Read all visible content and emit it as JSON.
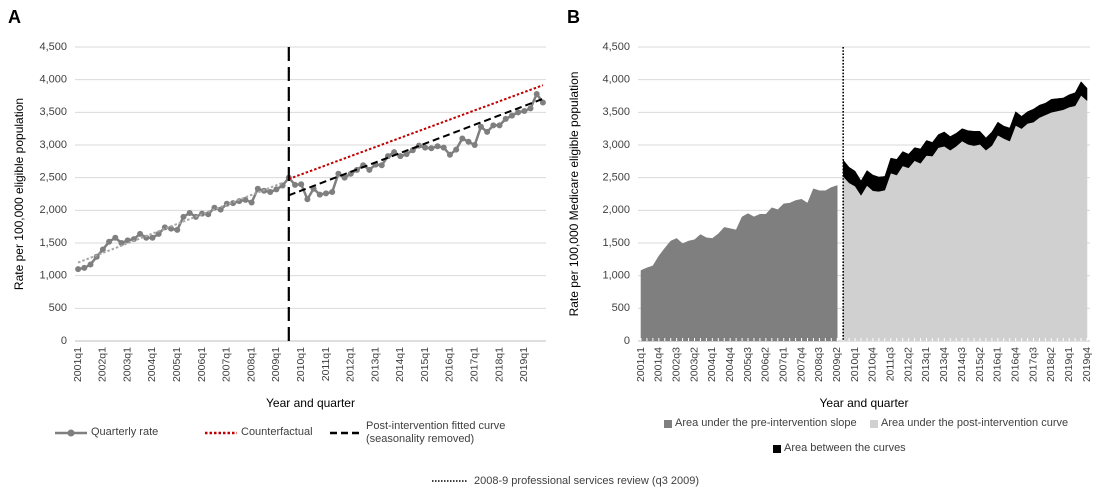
{
  "chart_data": [
    {
      "type": "line",
      "panel_label": "A",
      "x_label": "Year and quarter",
      "y_label": "Rate per 100,000 eligible population",
      "categories": [
        "2001q1",
        null,
        null,
        null,
        "2002q1",
        null,
        null,
        null,
        "2003q1",
        null,
        null,
        null,
        "2004q1",
        null,
        null,
        null,
        "2005q1",
        null,
        null,
        null,
        "2006q1",
        null,
        null,
        null,
        "2007q1",
        null,
        null,
        null,
        "2008q1",
        null,
        null,
        null,
        "2009q1",
        null,
        null,
        null,
        "2010q1",
        null,
        null,
        null,
        "2011q1",
        null,
        null,
        null,
        "2012q1",
        null,
        null,
        null,
        "2013q1",
        null,
        null,
        null,
        "2014q1",
        null,
        null,
        null,
        "2015q1",
        null,
        null,
        null,
        "2016q1",
        null,
        null,
        null,
        "2017q1",
        null,
        null,
        null,
        "2018q1",
        null,
        null,
        null,
        "2019q1",
        null,
        null,
        null
      ],
      "ylim": [
        0,
        4500
      ],
      "yticks": [
        0,
        500,
        {
          "value": 1000,
          "label": "1,000"
        },
        {
          "value": 1500,
          "label": "1,500"
        },
        {
          "value": 2000,
          "label": "2,000"
        },
        {
          "value": 2500,
          "label": "2,500"
        },
        {
          "value": 3000,
          "label": "3,000"
        },
        {
          "value": 3500,
          "label": "3,500"
        },
        {
          "value": 4000,
          "label": "4,000"
        },
        {
          "value": 4500,
          "label": "4,500"
        }
      ],
      "grid": true,
      "intervention_line": "dashed",
      "series": [
        {
          "name": "Quarterly rate",
          "color": "#7f7f7f",
          "style": "solid",
          "markers": true,
          "values": [
            1100,
            1120,
            1170,
            1290,
            1400,
            1520,
            1580,
            1500,
            1540,
            1560,
            1640,
            1580,
            1580,
            1640,
            1740,
            1720,
            1700,
            1900,
            1960,
            1900,
            1950,
            1940,
            2040,
            2010,
            2100,
            2110,
            2140,
            2160,
            2120,
            2330,
            2300,
            2280,
            2320,
            2380,
            2500,
            2390,
            2400,
            2170,
            2330,
            2240,
            2260,
            2280,
            2560,
            2500,
            2560,
            2620,
            2690,
            2620,
            2700,
            2690,
            2830,
            2890,
            2830,
            2860,
            2920,
            2990,
            2960,
            2950,
            2980,
            2960,
            2850,
            2930,
            3100,
            3050,
            3000,
            3280,
            3200,
            3300,
            3300,
            3400,
            3450,
            3500,
            3520,
            3560,
            3780,
            3650
          ]
        },
        {
          "color": "#a6a6a6",
          "style": "dotted",
          "values": [
            1200,
            1237,
            1274,
            1311,
            1348,
            1385,
            1422,
            1459,
            1496,
            1533,
            1570,
            1607,
            1644,
            1681,
            1718,
            1755,
            1792,
            1829,
            1866,
            1903,
            1940,
            1977,
            2014,
            2051,
            2088,
            2125,
            2162,
            2199,
            2236,
            2273,
            2310,
            2347,
            2384,
            2421,
            null,
            null,
            null,
            null,
            null,
            null,
            null,
            null,
            null,
            null,
            null,
            null,
            null,
            null,
            null,
            null,
            null,
            null,
            null,
            null,
            null,
            null,
            null,
            null,
            null,
            null,
            null,
            null,
            null,
            null,
            null,
            null,
            null,
            null,
            null,
            null,
            null,
            null,
            null,
            null,
            null,
            null
          ]
        },
        {
          "name": "Counterfactual",
          "color": "#c00000",
          "style": "dotted",
          "values": [
            null,
            null,
            null,
            null,
            null,
            null,
            null,
            null,
            null,
            null,
            null,
            null,
            null,
            null,
            null,
            null,
            null,
            null,
            null,
            null,
            null,
            null,
            null,
            null,
            null,
            null,
            null,
            null,
            null,
            null,
            null,
            null,
            null,
            null,
            2480,
            2515,
            2550,
            2585,
            2620,
            2655,
            2690,
            2725,
            2760,
            2795,
            2830,
            2865,
            2900,
            2935,
            2970,
            3005,
            3040,
            3075,
            3110,
            3145,
            3180,
            3215,
            3250,
            3285,
            3320,
            3355,
            3390,
            3425,
            3460,
            3495,
            3530,
            3565,
            3600,
            3635,
            3670,
            3705,
            3740,
            3775,
            3810,
            3845,
            3880,
            3915
          ]
        },
        {
          "name": "Post-intervention fitted curve (seasonality removed)",
          "color": "#000000",
          "style": "dashed",
          "values": [
            null,
            null,
            null,
            null,
            null,
            null,
            null,
            null,
            null,
            null,
            null,
            null,
            null,
            null,
            null,
            null,
            null,
            null,
            null,
            null,
            null,
            null,
            null,
            null,
            null,
            null,
            null,
            null,
            null,
            null,
            null,
            null,
            null,
            null,
            2230,
            2266,
            2302,
            2338,
            2374,
            2410,
            2446,
            2482,
            2518,
            2554,
            2590,
            2626,
            2662,
            2698,
            2734,
            2770,
            2806,
            2842,
            2878,
            2914,
            2950,
            2986,
            3022,
            3058,
            3094,
            3130,
            3166,
            3202,
            3238,
            3274,
            3310,
            3346,
            3382,
            3418,
            3454,
            3490,
            3526,
            3562,
            3598,
            3634,
            3670,
            3706
          ]
        }
      ]
    },
    {
      "type": "area",
      "panel_label": "B",
      "x_label": "Year and quarter",
      "y_label": "Rate per 100,000 Medicare eligible population",
      "categories": [
        "2001q1",
        null,
        null,
        "2001q4",
        null,
        null,
        "2002q3",
        null,
        null,
        "2003q2",
        null,
        null,
        "2004q1",
        null,
        null,
        "2004q4",
        null,
        null,
        "2005q3",
        null,
        null,
        "2006q2",
        null,
        null,
        "2007q1",
        null,
        null,
        "2007q4",
        null,
        null,
        "2008q3",
        null,
        null,
        "2009q2",
        null,
        null,
        "2010q1",
        null,
        null,
        "2010q4",
        null,
        null,
        "2011q3",
        null,
        null,
        "2012q2",
        null,
        null,
        "2013q1",
        null,
        null,
        "2013q4",
        null,
        null,
        "2014q3",
        null,
        null,
        "2015q2",
        null,
        null,
        "2016q1",
        null,
        null,
        "2016q4",
        null,
        null,
        "2017q3",
        null,
        null,
        "2018q2",
        null,
        null,
        "2019q1",
        null,
        null,
        "2019q4"
      ],
      "ylim": [
        0,
        4500
      ],
      "yticks": [
        0,
        500,
        {
          "value": 1000,
          "label": "1,000"
        },
        {
          "value": 1500,
          "label": "1,500"
        },
        {
          "value": 2000,
          "label": "2,000"
        },
        {
          "value": 2500,
          "label": "2,500"
        },
        {
          "value": 3000,
          "label": "3,000"
        },
        {
          "value": 3500,
          "label": "3,500"
        },
        {
          "value": 4000,
          "label": "4,000"
        },
        {
          "value": 4500,
          "label": "4,500"
        }
      ],
      "grid": true,
      "stacked": true,
      "intervention_line": "dotted",
      "series": [
        {
          "name": "Area under the pre-intervention slope",
          "color": "#7f7f7f",
          "values": [
            1080,
            1120,
            1150,
            1300,
            1420,
            1530,
            1570,
            1490,
            1530,
            1550,
            1630,
            1580,
            1570,
            1640,
            1740,
            1720,
            1700,
            1900,
            1950,
            1900,
            1940,
            1940,
            2040,
            2010,
            2100,
            2110,
            2150,
            2170,
            2110,
            2330,
            2300,
            2300,
            2350,
            2380,
            null,
            null,
            null,
            null,
            null,
            null,
            null,
            null,
            null,
            null,
            null,
            null,
            null,
            null,
            null,
            null,
            null,
            null,
            null,
            null,
            null,
            null,
            null,
            null,
            null,
            null,
            null,
            null,
            null,
            null,
            null,
            null,
            null,
            null,
            null,
            null,
            null,
            null,
            null,
            null,
            null,
            null
          ]
        },
        {
          "name": "Area under the post-intervention curve",
          "color": "#d0d0d0",
          "values": [
            null,
            null,
            null,
            null,
            null,
            null,
            null,
            null,
            null,
            null,
            null,
            null,
            null,
            null,
            null,
            null,
            null,
            null,
            null,
            null,
            null,
            null,
            null,
            null,
            null,
            null,
            null,
            null,
            null,
            null,
            null,
            null,
            null,
            null,
            2520,
            2420,
            2370,
            2230,
            2380,
            2300,
            2290,
            2310,
            2570,
            2540,
            2680,
            2650,
            2760,
            2720,
            2840,
            2830,
            2960,
            2980,
            2920,
            2980,
            3060,
            3010,
            2990,
            3010,
            2920,
            2990,
            3150,
            3100,
            3060,
            3300,
            3250,
            3330,
            3350,
            3420,
            3460,
            3500,
            3520,
            3540,
            3580,
            3600,
            3760,
            3680
          ]
        },
        {
          "name": "Area between the curves",
          "color": "#000000",
          "values": [
            null,
            null,
            null,
            null,
            null,
            null,
            null,
            null,
            null,
            null,
            null,
            null,
            null,
            null,
            null,
            null,
            null,
            null,
            null,
            null,
            null,
            null,
            null,
            null,
            null,
            null,
            null,
            null,
            null,
            null,
            null,
            null,
            null,
            null,
            250,
            240,
            230,
            220,
            230,
            240,
            220,
            210,
            230,
            240,
            220,
            210,
            200,
            220,
            230,
            210,
            200,
            220,
            210,
            200,
            190,
            210,
            220,
            200,
            190,
            210,
            200,
            190,
            200,
            210,
            190,
            180,
            200,
            190,
            180,
            200,
            190,
            180,
            190,
            200,
            210,
            190
          ]
        }
      ]
    }
  ],
  "note": "2008-9 professional services review (q3 2009)"
}
